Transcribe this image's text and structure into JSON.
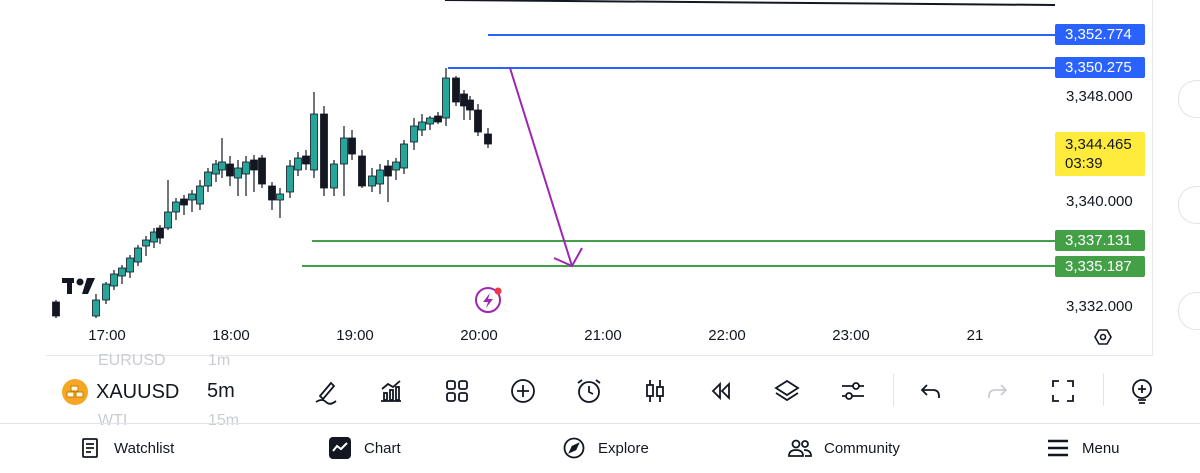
{
  "chart": {
    "symbol": "XAUUSD",
    "interval": "5m",
    "ghost_above": [
      "EURUSD",
      "1m"
    ],
    "ghost_below": [
      "WTI",
      "15m"
    ],
    "countdown": "03:39",
    "y_axis_labels": [
      "3,348.000",
      "3,340.000",
      "3,332.000"
    ],
    "x_axis_labels": [
      "17:00",
      "18:00",
      "19:00",
      "20:00",
      "21:00",
      "22:00",
      "23:00",
      "21"
    ],
    "price_tags": {
      "blue_top": "3,352.774",
      "blue_bottom": "3,350.275",
      "current": "3,344.465",
      "green_top": "3,337.131",
      "green_bottom": "3,335.187"
    },
    "colors": {
      "up": "#26a69a",
      "down": "#131722",
      "blue": "#2962ff",
      "green": "#43a047",
      "arrow": "#9c27b0",
      "current": "#ffeb3b"
    }
  },
  "toolbar": {
    "tools": [
      "pen-icon",
      "indicators-icon",
      "templates-icon",
      "add-icon",
      "alert-icon",
      "candle-style-icon",
      "replay-icon",
      "layers-icon",
      "settings-sliders-icon",
      "undo-icon",
      "redo-icon",
      "fullscreen-icon",
      "zoom-add-icon"
    ]
  },
  "nav": {
    "watchlist": "Watchlist",
    "chart": "Chart",
    "explore": "Explore",
    "community": "Community",
    "menu": "Menu"
  }
}
